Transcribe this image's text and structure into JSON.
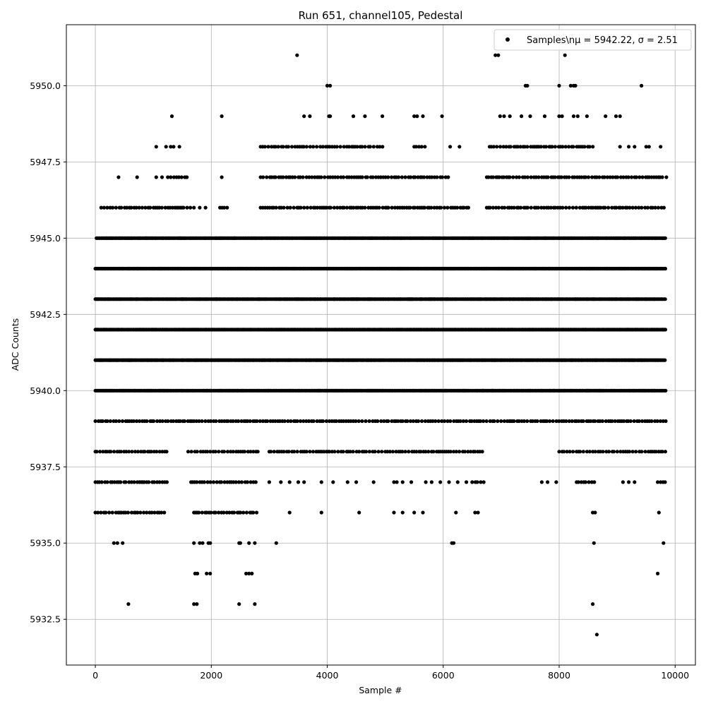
{
  "chart_data": {
    "type": "scatter",
    "title": "Run 651, channel105, Pedestal",
    "xlabel": "Sample #",
    "ylabel": "ADC Counts",
    "xlim": [
      -500,
      10350
    ],
    "ylim": [
      5931.0,
      5952.0
    ],
    "xticks": [
      0,
      2000,
      4000,
      6000,
      8000,
      10000
    ],
    "yticks": [
      5932.5,
      5935.0,
      5937.5,
      5940.0,
      5942.5,
      5945.0,
      5947.5,
      5950.0
    ],
    "xtick_labels": [
      "0",
      "2000",
      "4000",
      "6000",
      "8000",
      "10000"
    ],
    "ytick_labels": [
      "5932.5",
      "5935.0",
      "5937.5",
      "5940.0",
      "5942.5",
      "5945.0",
      "5947.5",
      "5950.0"
    ],
    "grid": true,
    "legend": {
      "placement": "top-right",
      "label": "Samples\\nμ = 5942.22, σ = 2.51"
    },
    "series": [
      {
        "name": "Samples\\nμ = 5942.22, σ = 2.51",
        "color": "#000000",
        "marker": "circle",
        "x_range": [
          0,
          9840
        ],
        "mean": 5942.22,
        "sigma": 2.51,
        "sampled_levels": [
          {
            "y": 5940,
            "segments": [
              [
                0,
                9840
              ]
            ]
          },
          {
            "y": 5941,
            "segments": [
              [
                0,
                9840
              ]
            ]
          },
          {
            "y": 5942,
            "segments": [
              [
                0,
                9840
              ]
            ]
          },
          {
            "y": 5943,
            "segments": [
              [
                0,
                9840
              ]
            ]
          },
          {
            "y": 5944,
            "segments": [
              [
                0,
                9840
              ]
            ]
          },
          {
            "y": 5945,
            "segments": [
              [
                20,
                9840
              ]
            ]
          },
          {
            "y": 5939,
            "segments": [
              [
                0,
                9840
              ]
            ]
          },
          {
            "y": 5938,
            "segments": [
              [
                0,
                1250
              ],
              [
                1600,
                2850
              ],
              [
                3000,
                6700
              ],
              [
                8000,
                9840
              ]
            ]
          },
          {
            "y": 5946,
            "segments": [
              [
                100,
                1650
              ],
              [
                2150,
                2300
              ],
              [
                2850,
                6450
              ],
              [
                6750,
                9840
              ]
            ]
          },
          {
            "y": 5937,
            "segments": [
              [
                0,
                1250
              ],
              [
                1650,
                2800
              ],
              [
                6500,
                6700
              ],
              [
                8300,
                8650
              ],
              [
                9700,
                9840
              ]
            ]
          },
          {
            "y": 5947,
            "segments": [
              [
                1300,
                1600
              ],
              [
                2850,
                6100
              ],
              [
                6750,
                9800
              ]
            ]
          },
          {
            "y": 5936,
            "segments": [
              [
                0,
                1200
              ],
              [
                1700,
                2800
              ]
            ]
          },
          {
            "y": 5948,
            "segments": [
              [
                2850,
                5000
              ],
              [
                5500,
                5700
              ],
              [
                6800,
                8600
              ]
            ]
          }
        ],
        "points": [
          {
            "x": 3480,
            "y": 5951
          },
          {
            "x": 6900,
            "y": 5951
          },
          {
            "x": 6950,
            "y": 5951
          },
          {
            "x": 8100,
            "y": 5951
          },
          {
            "x": 4000,
            "y": 5950
          },
          {
            "x": 4050,
            "y": 5950
          },
          {
            "x": 7420,
            "y": 5950
          },
          {
            "x": 7450,
            "y": 5950
          },
          {
            "x": 8000,
            "y": 5950
          },
          {
            "x": 8200,
            "y": 5950
          },
          {
            "x": 8250,
            "y": 5950
          },
          {
            "x": 8280,
            "y": 5950
          },
          {
            "x": 9420,
            "y": 5950
          },
          {
            "x": 1320,
            "y": 5949
          },
          {
            "x": 2180,
            "y": 5949
          },
          {
            "x": 3600,
            "y": 5949
          },
          {
            "x": 3700,
            "y": 5949
          },
          {
            "x": 4030,
            "y": 5949
          },
          {
            "x": 4050,
            "y": 5949
          },
          {
            "x": 4450,
            "y": 5949
          },
          {
            "x": 4650,
            "y": 5949
          },
          {
            "x": 4950,
            "y": 5949
          },
          {
            "x": 5500,
            "y": 5949
          },
          {
            "x": 5550,
            "y": 5949
          },
          {
            "x": 5650,
            "y": 5949
          },
          {
            "x": 5980,
            "y": 5949
          },
          {
            "x": 6980,
            "y": 5949
          },
          {
            "x": 7050,
            "y": 5949
          },
          {
            "x": 7150,
            "y": 5949
          },
          {
            "x": 7350,
            "y": 5949
          },
          {
            "x": 7500,
            "y": 5949
          },
          {
            "x": 7750,
            "y": 5949
          },
          {
            "x": 8000,
            "y": 5949
          },
          {
            "x": 8050,
            "y": 5949
          },
          {
            "x": 8250,
            "y": 5949
          },
          {
            "x": 8320,
            "y": 5949
          },
          {
            "x": 8480,
            "y": 5949
          },
          {
            "x": 8800,
            "y": 5949
          },
          {
            "x": 8980,
            "y": 5949
          },
          {
            "x": 9050,
            "y": 5949
          },
          {
            "x": 1050,
            "y": 5948
          },
          {
            "x": 1220,
            "y": 5948
          },
          {
            "x": 1300,
            "y": 5948
          },
          {
            "x": 1350,
            "y": 5948
          },
          {
            "x": 1450,
            "y": 5948
          },
          {
            "x": 6120,
            "y": 5948
          },
          {
            "x": 6280,
            "y": 5948
          },
          {
            "x": 9050,
            "y": 5948
          },
          {
            "x": 9200,
            "y": 5948
          },
          {
            "x": 9300,
            "y": 5948
          },
          {
            "x": 9500,
            "y": 5948
          },
          {
            "x": 9550,
            "y": 5948
          },
          {
            "x": 9750,
            "y": 5948
          },
          {
            "x": 400,
            "y": 5947
          },
          {
            "x": 720,
            "y": 5947
          },
          {
            "x": 1050,
            "y": 5947
          },
          {
            "x": 1150,
            "y": 5947
          },
          {
            "x": 1250,
            "y": 5947
          },
          {
            "x": 2180,
            "y": 5947
          },
          {
            "x": 9850,
            "y": 5947
          },
          {
            "x": 1700,
            "y": 5946
          },
          {
            "x": 1800,
            "y": 5946
          },
          {
            "x": 1900,
            "y": 5946
          },
          {
            "x": 2400,
            "y": 5945
          },
          {
            "x": 2700,
            "y": 5945
          },
          {
            "x": 3350,
            "y": 5936
          },
          {
            "x": 3900,
            "y": 5936
          },
          {
            "x": 4550,
            "y": 5936
          },
          {
            "x": 5150,
            "y": 5936
          },
          {
            "x": 5300,
            "y": 5936
          },
          {
            "x": 5500,
            "y": 5936
          },
          {
            "x": 5650,
            "y": 5936
          },
          {
            "x": 6220,
            "y": 5936
          },
          {
            "x": 6550,
            "y": 5936
          },
          {
            "x": 6600,
            "y": 5936
          },
          {
            "x": 8580,
            "y": 5936
          },
          {
            "x": 8620,
            "y": 5936
          },
          {
            "x": 9720,
            "y": 5936
          },
          {
            "x": 7700,
            "y": 5937
          },
          {
            "x": 7800,
            "y": 5937
          },
          {
            "x": 7950,
            "y": 5937
          },
          {
            "x": 9100,
            "y": 5937
          },
          {
            "x": 9200,
            "y": 5937
          },
          {
            "x": 9300,
            "y": 5937
          },
          {
            "x": 3000,
            "y": 5937
          },
          {
            "x": 3200,
            "y": 5937
          },
          {
            "x": 3350,
            "y": 5937
          },
          {
            "x": 3500,
            "y": 5937
          },
          {
            "x": 3600,
            "y": 5937
          },
          {
            "x": 3900,
            "y": 5937
          },
          {
            "x": 4100,
            "y": 5937
          },
          {
            "x": 4350,
            "y": 5937
          },
          {
            "x": 4500,
            "y": 5937
          },
          {
            "x": 4800,
            "y": 5937
          },
          {
            "x": 5150,
            "y": 5937
          },
          {
            "x": 5200,
            "y": 5937
          },
          {
            "x": 5300,
            "y": 5937
          },
          {
            "x": 5450,
            "y": 5937
          },
          {
            "x": 5700,
            "y": 5937
          },
          {
            "x": 5800,
            "y": 5937
          },
          {
            "x": 5950,
            "y": 5937
          },
          {
            "x": 6100,
            "y": 5937
          },
          {
            "x": 6250,
            "y": 5937
          },
          {
            "x": 6400,
            "y": 5937
          },
          {
            "x": 320,
            "y": 5935
          },
          {
            "x": 380,
            "y": 5935
          },
          {
            "x": 470,
            "y": 5935
          },
          {
            "x": 1700,
            "y": 5935
          },
          {
            "x": 1800,
            "y": 5935
          },
          {
            "x": 1850,
            "y": 5935
          },
          {
            "x": 1950,
            "y": 5935
          },
          {
            "x": 1980,
            "y": 5935
          },
          {
            "x": 2480,
            "y": 5935
          },
          {
            "x": 2500,
            "y": 5935
          },
          {
            "x": 2650,
            "y": 5935
          },
          {
            "x": 2750,
            "y": 5935
          },
          {
            "x": 3120,
            "y": 5935
          },
          {
            "x": 6150,
            "y": 5935
          },
          {
            "x": 6180,
            "y": 5935
          },
          {
            "x": 8600,
            "y": 5935
          },
          {
            "x": 9800,
            "y": 5935
          },
          {
            "x": 1720,
            "y": 5934
          },
          {
            "x": 1760,
            "y": 5934
          },
          {
            "x": 1920,
            "y": 5934
          },
          {
            "x": 1980,
            "y": 5934
          },
          {
            "x": 2600,
            "y": 5934
          },
          {
            "x": 2650,
            "y": 5934
          },
          {
            "x": 2700,
            "y": 5934
          },
          {
            "x": 9700,
            "y": 5934
          },
          {
            "x": 570,
            "y": 5933
          },
          {
            "x": 1700,
            "y": 5933
          },
          {
            "x": 1750,
            "y": 5933
          },
          {
            "x": 2480,
            "y": 5933
          },
          {
            "x": 2750,
            "y": 5933
          },
          {
            "x": 8580,
            "y": 5933
          },
          {
            "x": 8650,
            "y": 5932
          }
        ]
      }
    ]
  }
}
